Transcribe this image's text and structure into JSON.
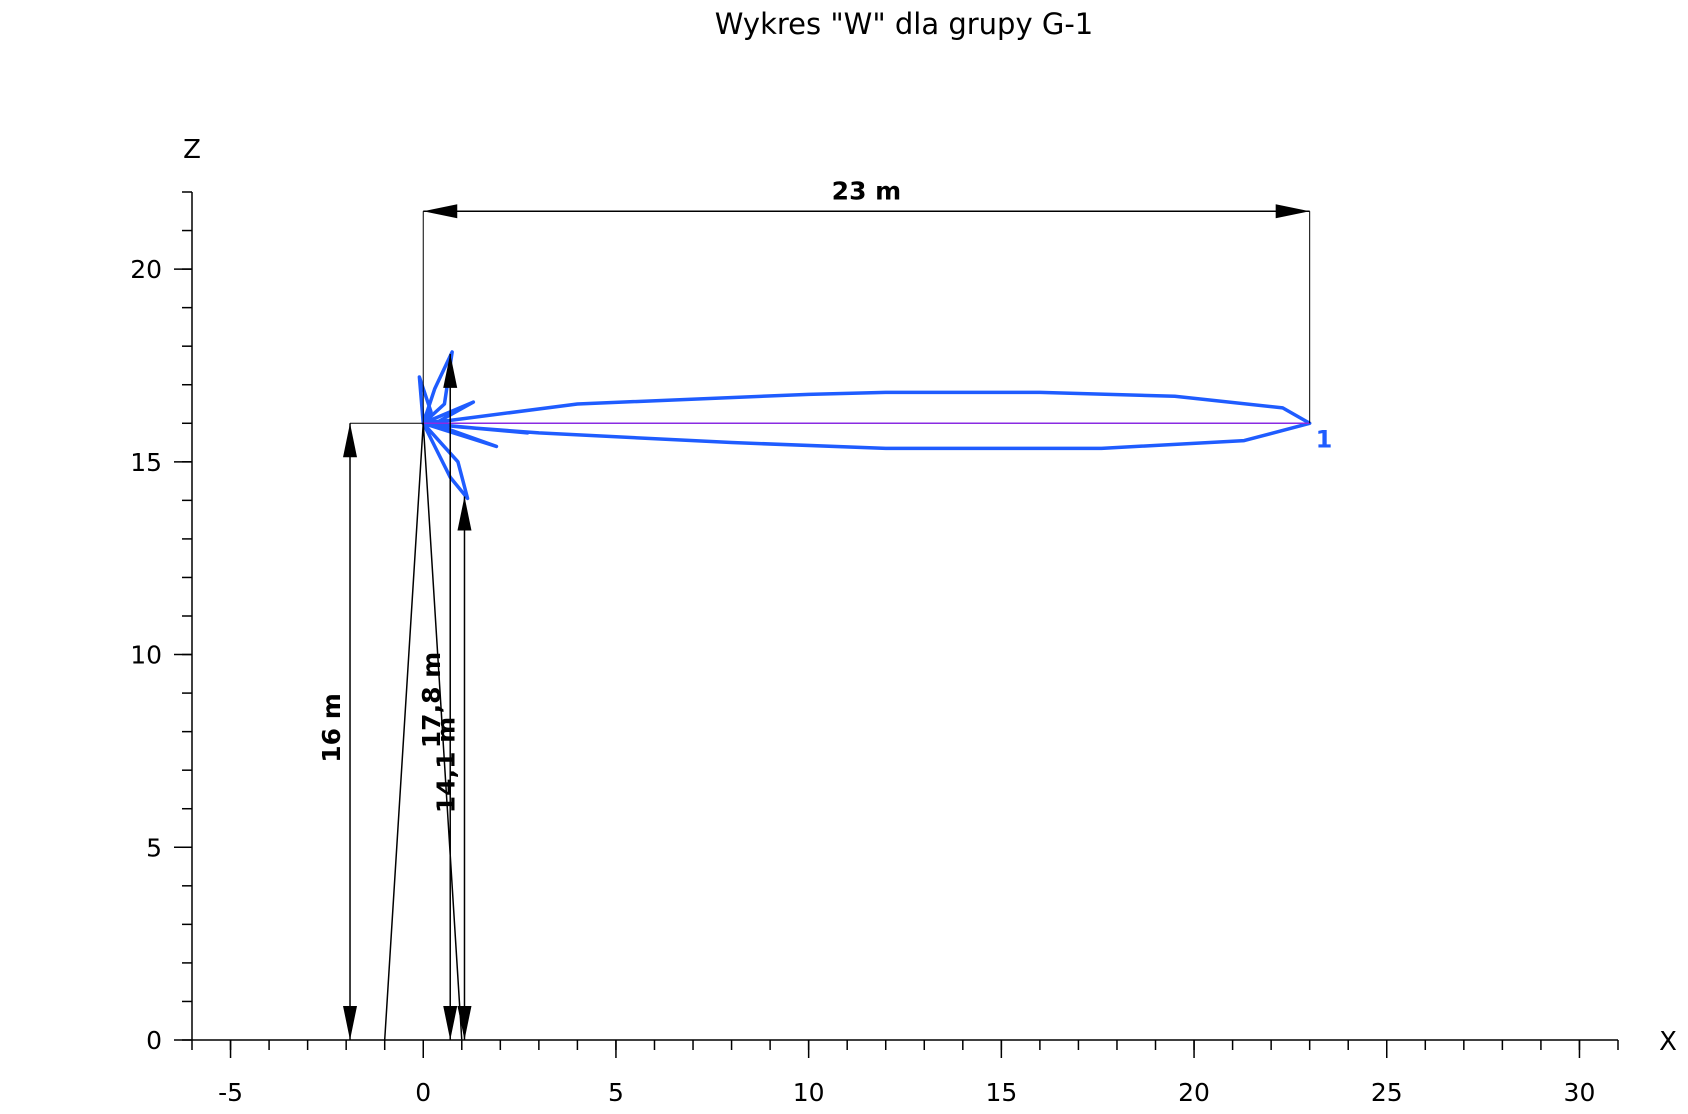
{
  "chart_data": {
    "type": "line",
    "title": "Wykres \"W\" dla grupy G-1",
    "x_label": "X",
    "y_label": "Z",
    "xlim": [
      -6,
      31
    ],
    "ylim": [
      0,
      22
    ],
    "xticks": [
      -5,
      0,
      5,
      10,
      15,
      20,
      25,
      30
    ],
    "yticks": [
      0,
      5,
      10,
      15,
      20
    ],
    "xticks_minor": [
      -6,
      -5,
      -4,
      -3,
      -2,
      -1,
      0,
      1,
      2,
      3,
      4,
      5,
      6,
      7,
      8,
      9,
      10,
      11,
      12,
      13,
      14,
      15,
      16,
      17,
      18,
      19,
      20,
      21,
      22,
      23,
      24,
      25,
      26,
      27,
      28,
      29,
      30,
      31
    ],
    "yticks_minor": [
      0,
      1,
      2,
      3,
      4,
      5,
      6,
      7,
      8,
      9,
      10,
      11,
      12,
      13,
      14,
      15,
      16,
      17,
      18,
      19,
      20,
      21,
      22
    ],
    "series": [
      {
        "color": "#1f5cff",
        "x": [
          0,
          0.5,
          4,
          10,
          12,
          16,
          19.5,
          22.3,
          23,
          21.3,
          17.6,
          12,
          8,
          3,
          1,
          0,
          0.3,
          0.75,
          0.55,
          0,
          0.7,
          1.15,
          0.9,
          0,
          -0.1,
          0.2,
          0,
          1.3,
          0.4,
          0,
          1.9,
          0.5,
          0,
          2.7,
          0.5,
          0
        ],
        "y": [
          16,
          16.05,
          16.5,
          16.75,
          16.8,
          16.8,
          16.7,
          16.4,
          16,
          15.55,
          15.35,
          15.35,
          15.5,
          15.75,
          15.9,
          16,
          16.9,
          17.85,
          16.5,
          16,
          14.6,
          14.05,
          15,
          16,
          17.2,
          16.3,
          16,
          16.55,
          16.05,
          16,
          15.4,
          15.9,
          16,
          15.75,
          15.95,
          16
        ]
      },
      {
        "color": "#8a2be2",
        "x": [
          0,
          23
        ],
        "y": [
          16,
          16
        ]
      },
      {
        "color": "#000000",
        "x": [
          -1,
          0,
          1
        ],
        "y": [
          0,
          16,
          0
        ]
      }
    ],
    "point_label": {
      "text": "1",
      "x": 23,
      "y": 16
    },
    "dimensions": [
      {
        "label": "23 m",
        "value": 23
      },
      {
        "label": "16 m",
        "value": 16
      },
      {
        "label": "17,8 m",
        "value": 17.8
      },
      {
        "label": "14,1 m",
        "value": 14.1
      }
    ]
  }
}
